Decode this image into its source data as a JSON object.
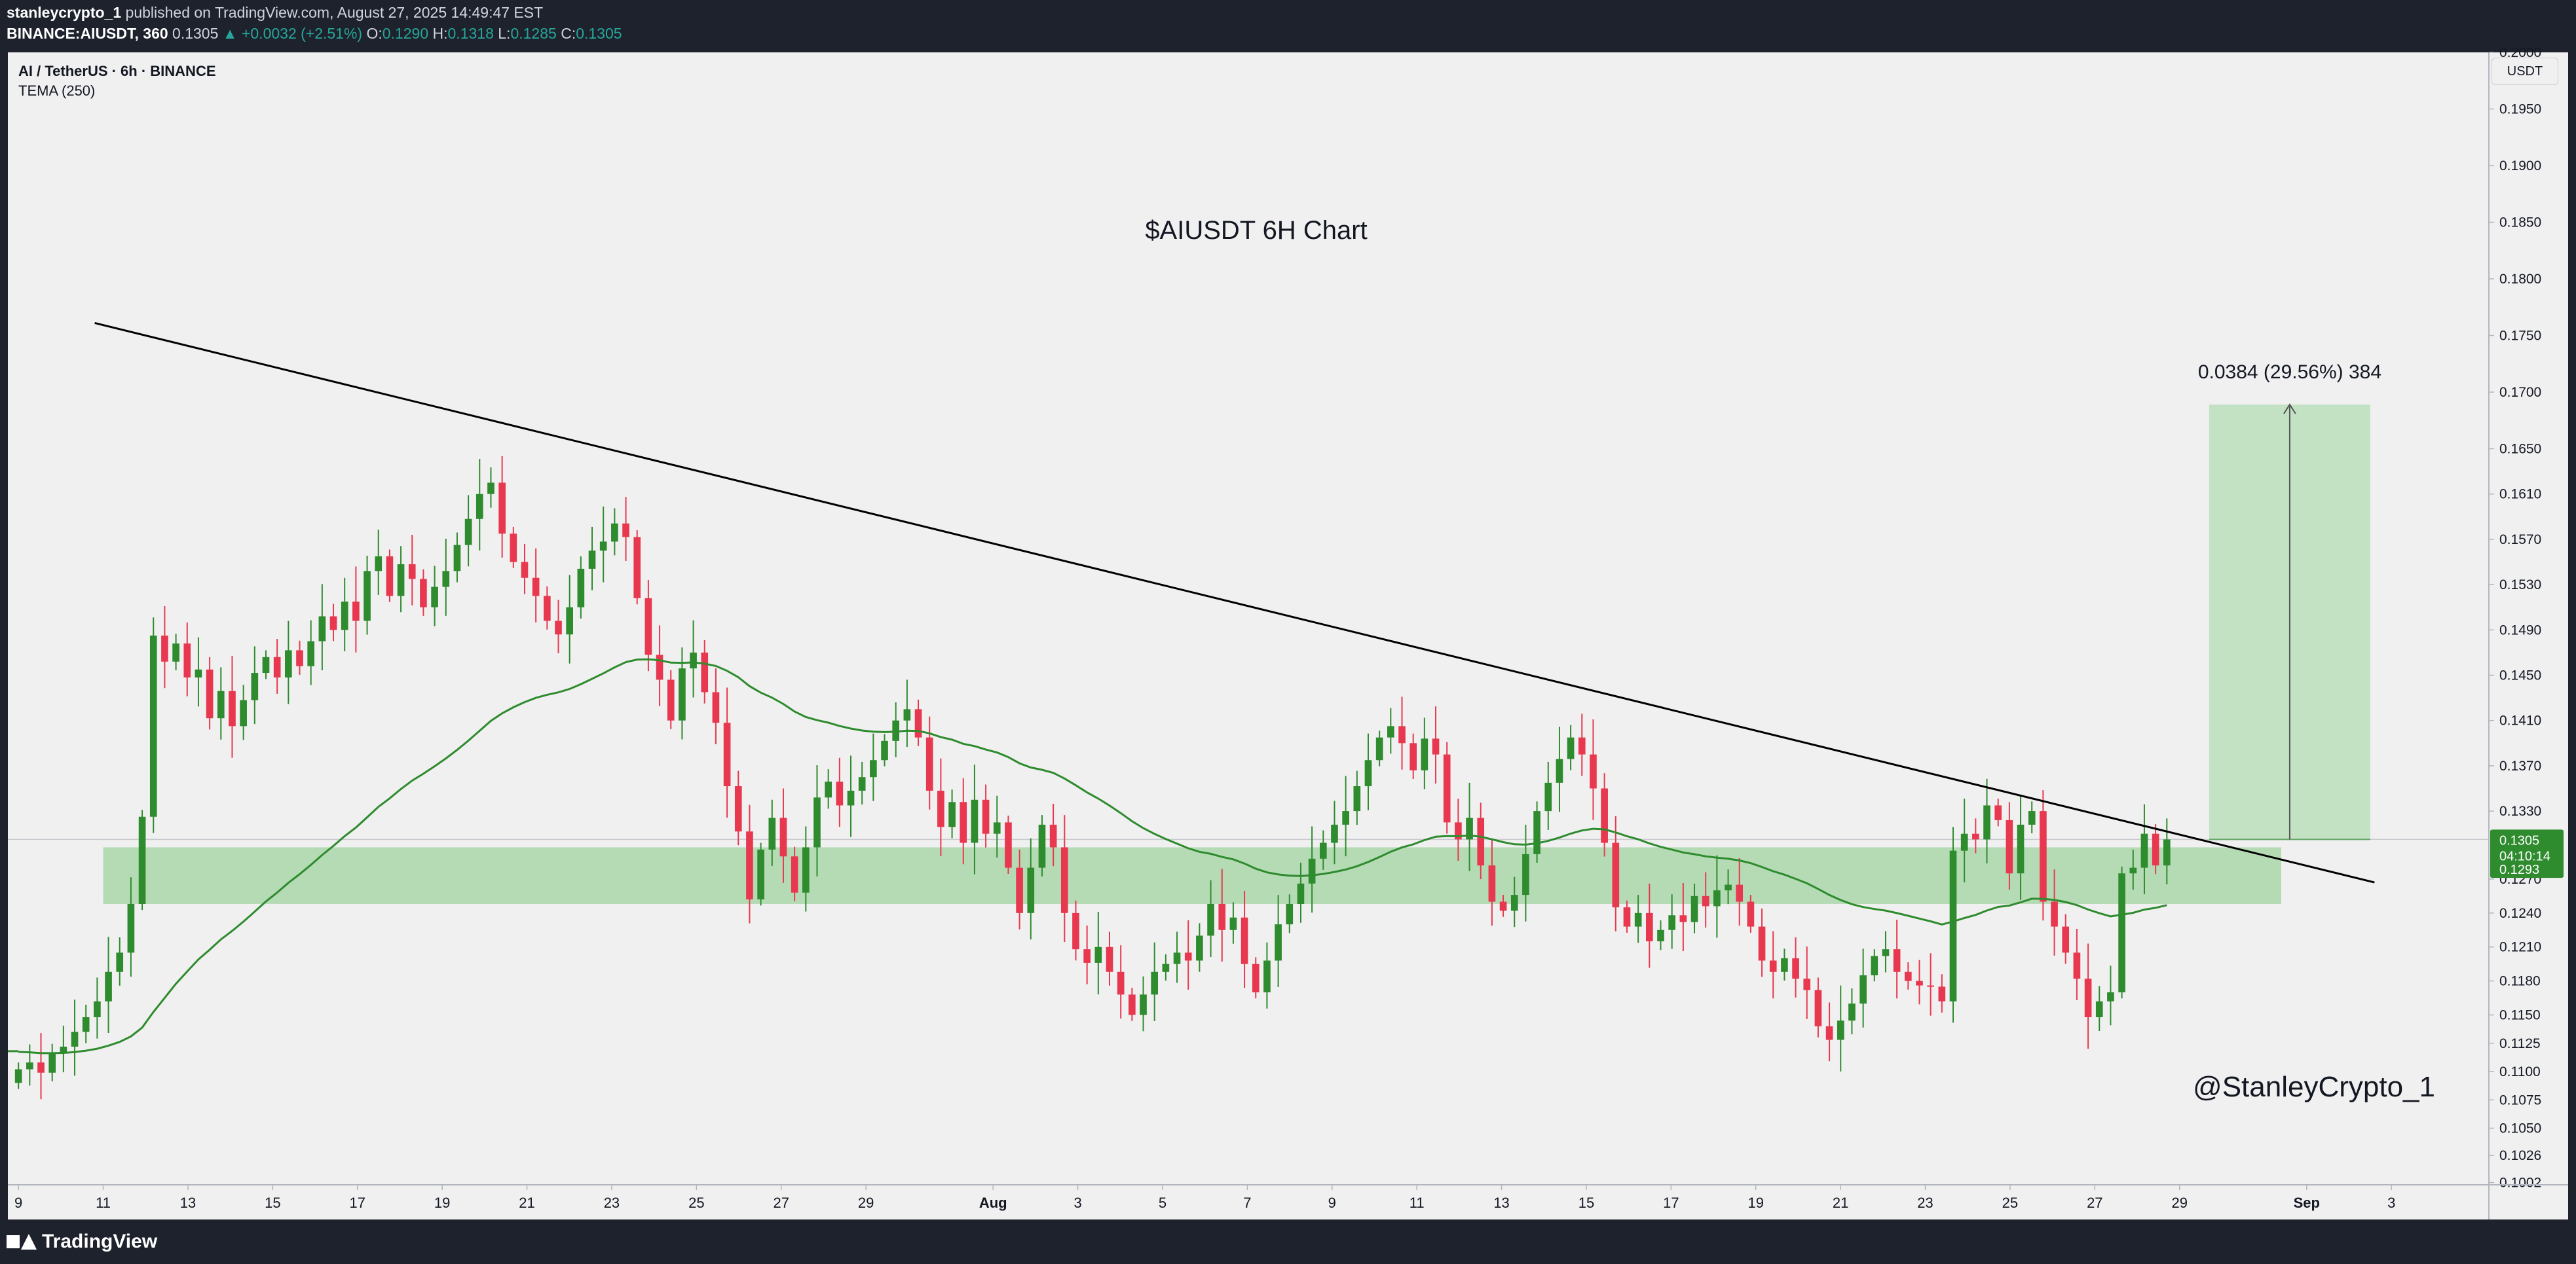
{
  "header": {
    "publisher": "stanleycrypto_1",
    "published_text": "published on TradingView.com, August 27, 2025 14:49:47 EST",
    "symbol_line": "BINANCE:AIUSDT, 360",
    "price": "0.1305",
    "change": "▲ +0.0032 (+2.51%)",
    "o_label": "O:",
    "o_value": "0.1290",
    "h_label": "H:",
    "h_value": "0.1318",
    "l_label": "L:",
    "l_value": "0.1285",
    "c_label": "C:",
    "c_value": "0.1305"
  },
  "legend": {
    "title": "AI / TetherUS · 6h · BINANCE",
    "indicator": "TEMA (250)"
  },
  "axis_unit": "USDT",
  "footer": {
    "brand": "TradingView"
  },
  "colors": {
    "bull": "#2e8b2e",
    "bear": "#e8384f",
    "tema": "#2e8b2e",
    "zone": "#b5dbb5",
    "projection": "#c3e2c3",
    "trendline": "#000000",
    "price_tag": "#2e8b2e"
  },
  "chart_data": {
    "type": "candlestick",
    "title": "$AIUSDT 6H Chart",
    "watermark": "@StanleyCrypto_1",
    "indicator": "TEMA (250)",
    "ylim": [
      0.1,
      0.2
    ],
    "y_ticks": [
      "0.2000",
      "0.1950",
      "0.1900",
      "0.1850",
      "0.1800",
      "0.1750",
      "0.1700",
      "0.1650",
      "0.1610",
      "0.1570",
      "0.1530",
      "0.1490",
      "0.1450",
      "0.1410",
      "0.1370",
      "0.1330",
      "0.1270",
      "0.1240",
      "0.1210",
      "0.1180",
      "0.1150",
      "0.1125",
      "0.1100",
      "0.1075",
      "0.1050",
      "0.1026",
      "0.1002"
    ],
    "y_tick_values": [
      0.2,
      0.195,
      0.19,
      0.185,
      0.18,
      0.175,
      0.17,
      0.165,
      0.161,
      0.157,
      0.153,
      0.149,
      0.145,
      0.141,
      0.137,
      0.133,
      0.127,
      0.124,
      0.121,
      0.118,
      0.115,
      0.1125,
      0.11,
      0.1075,
      0.105,
      0.1026,
      0.1002
    ],
    "x_ticks": [
      "9",
      "11",
      "13",
      "15",
      "17",
      "19",
      "21",
      "23",
      "25",
      "27",
      "29",
      "Aug",
      "3",
      "5",
      "7",
      "9",
      "11",
      "13",
      "15",
      "17",
      "19",
      "21",
      "23",
      "25",
      "27",
      "29",
      "Sep",
      "3"
    ],
    "x_tick_days": [
      9,
      11,
      13,
      15,
      17,
      19,
      21,
      23,
      25,
      27,
      29,
      32,
      34,
      36,
      38,
      40,
      42,
      44,
      46,
      48,
      50,
      52,
      54,
      56,
      58,
      60,
      63,
      65
    ],
    "x_day_range": [
      8.75,
      67.3
    ],
    "last_day": 59.7,
    "closes": [
      0.1102,
      0.1108,
      0.1099,
      0.1116,
      0.1122,
      0.1135,
      0.1148,
      0.1162,
      0.1188,
      0.1205,
      0.1248,
      0.1325,
      0.1485,
      0.1462,
      0.1478,
      0.1448,
      0.1455,
      0.1412,
      0.1436,
      0.1405,
      0.1428,
      0.1452,
      0.1466,
      0.1448,
      0.1472,
      0.1458,
      0.148,
      0.1502,
      0.149,
      0.1515,
      0.1498,
      0.1542,
      0.1555,
      0.152,
      0.1548,
      0.1535,
      0.151,
      0.1528,
      0.1542,
      0.1565,
      0.1588,
      0.161,
      0.162,
      0.1575,
      0.155,
      0.1536,
      0.152,
      0.1498,
      0.1486,
      0.151,
      0.1544,
      0.156,
      0.1568,
      0.1584,
      0.1572,
      0.1518,
      0.1468,
      0.1446,
      0.141,
      0.1456,
      0.147,
      0.1435,
      0.1408,
      0.1352,
      0.1312,
      0.1252,
      0.1296,
      0.1324,
      0.129,
      0.1258,
      0.1298,
      0.1342,
      0.1356,
      0.1335,
      0.1348,
      0.136,
      0.1375,
      0.1392,
      0.141,
      0.142,
      0.1395,
      0.1348,
      0.1316,
      0.1338,
      0.1302,
      0.134,
      0.131,
      0.132,
      0.128,
      0.124,
      0.128,
      0.1318,
      0.1298,
      0.124,
      0.1208,
      0.1196,
      0.121,
      0.1188,
      0.1168,
      0.115,
      0.1168,
      0.1188,
      0.1195,
      0.1205,
      0.1198,
      0.122,
      0.1248,
      0.1225,
      0.1236,
      0.1195,
      0.117,
      0.1198,
      0.123,
      0.1248,
      0.1266,
      0.1288,
      0.1302,
      0.1318,
      0.133,
      0.1352,
      0.1375,
      0.1395,
      0.1405,
      0.139,
      0.1366,
      0.1394,
      0.138,
      0.132,
      0.1305,
      0.1324,
      0.1282,
      0.125,
      0.1242,
      0.1256,
      0.1292,
      0.133,
      0.1355,
      0.1376,
      0.1395,
      0.138,
      0.135,
      0.1302,
      0.1245,
      0.1228,
      0.124,
      0.1215,
      0.1225,
      0.1238,
      0.1232,
      0.1255,
      0.1246,
      0.126,
      0.1265,
      0.125,
      0.1228,
      0.1198,
      0.1188,
      0.12,
      0.1182,
      0.1172,
      0.114,
      0.1128,
      0.1145,
      0.116,
      0.1185,
      0.1202,
      0.1208,
      0.1188,
      0.118,
      0.1176,
      0.1175,
      0.1162,
      0.1295,
      0.131,
      0.1305,
      0.1335,
      0.1322,
      0.1275,
      0.1318,
      0.133,
      0.125,
      0.1228,
      0.1205,
      0.1182,
      0.1148,
      0.1162,
      0.117,
      0.1275,
      0.128,
      0.131,
      0.1282,
      0.1305
    ]
  }
}
